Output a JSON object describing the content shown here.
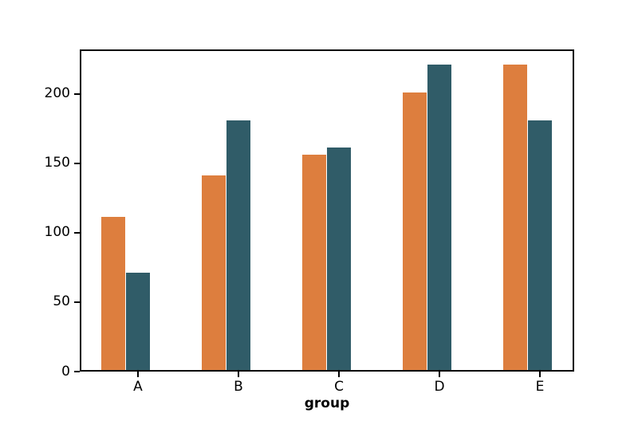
{
  "figure": {
    "background": "#ffffff"
  },
  "chart_data": {
    "type": "bar",
    "title": "",
    "xlabel": "group",
    "ylabel": "",
    "categories": [
      "A",
      "B",
      "C",
      "D",
      "E"
    ],
    "series": [
      {
        "name": "orange",
        "color": "#dd7e3e",
        "values": [
          110,
          140,
          155,
          200,
          220
        ]
      },
      {
        "name": "teal",
        "color": "#305c68",
        "values": [
          70,
          180,
          160,
          220,
          180
        ]
      }
    ],
    "ylim": [
      0,
      232
    ],
    "yticks": [
      {
        "label": "0",
        "value": 0
      },
      {
        "label": "50",
        "value": 50
      },
      {
        "label": "100",
        "value": 100
      },
      {
        "label": "150",
        "value": 150
      },
      {
        "label": "200",
        "value": 200
      }
    ],
    "grid": false,
    "legend": "none",
    "axis_color": "#000000"
  }
}
